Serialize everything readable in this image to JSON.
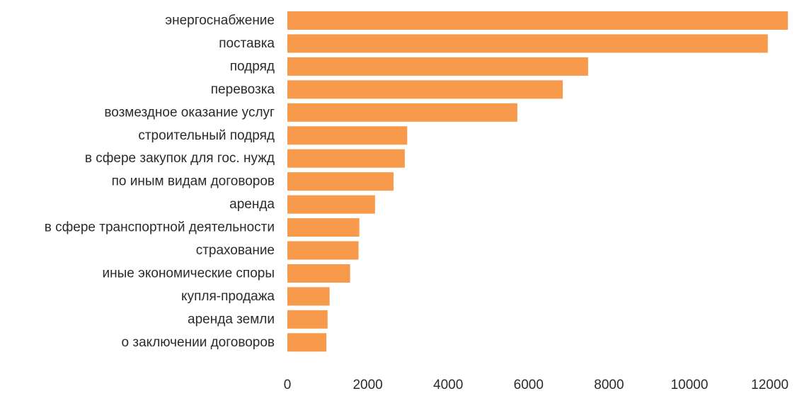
{
  "chart_data": {
    "type": "bar",
    "orientation": "horizontal",
    "title": "",
    "xlabel": "",
    "ylabel": "",
    "categories": [
      "энергоснабжение",
      "поставка",
      "подряд",
      "перевозка",
      "возмездное оказание услуг",
      "строительный подряд",
      "в сфере закупок для гос. нужд",
      "по иным видам договоров",
      "аренда",
      "в сфере транспортной деятельности",
      "страхование",
      "иные экономические споры",
      "купля-продажа",
      "аренда земли",
      "о заключении договоров"
    ],
    "values": [
      12450,
      11950,
      7480,
      6850,
      5720,
      2980,
      2920,
      2640,
      2180,
      1790,
      1770,
      1560,
      1050,
      1000,
      970
    ],
    "xlim": [
      0,
      12500
    ],
    "xticks": [
      "0",
      "2000",
      "4000",
      "6000",
      "8000",
      "10000",
      "12000"
    ],
    "grid": false,
    "legend": "none",
    "bar_color": "#f79a4b"
  }
}
